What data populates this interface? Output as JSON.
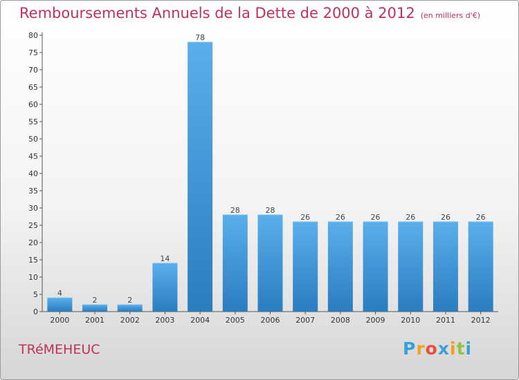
{
  "header": {
    "title": "Remboursements Annuels de la Dette de 2000 à 2012",
    "unit": "(en milliers d'€)"
  },
  "footer": {
    "commune": "TRéMEHEUC",
    "brand": "Proxiti",
    "brand_colors": [
      "#3aa0d8",
      "#f0a020",
      "#e8503a",
      "#3aa0d8",
      "#f0a020",
      "#8cc63f",
      "#3aa0d8"
    ]
  },
  "colors": {
    "title": "#c0315a",
    "bar_light": "#5aafea",
    "bar_dark": "#2b7cc0",
    "axis": "#555555"
  },
  "chart_data": {
    "type": "bar",
    "categories": [
      "2000",
      "2001",
      "2002",
      "2003",
      "2004",
      "2005",
      "2006",
      "2007",
      "2008",
      "2009",
      "2010",
      "2011",
      "2012"
    ],
    "values": [
      4,
      2,
      2,
      14,
      78,
      28,
      28,
      26,
      26,
      26,
      26,
      26,
      26
    ],
    "ylim": [
      0,
      80
    ],
    "yticks": [
      0,
      5,
      10,
      15,
      20,
      25,
      30,
      35,
      40,
      45,
      50,
      55,
      60,
      65,
      70,
      75,
      80
    ],
    "grid": false,
    "data_labels": true
  }
}
